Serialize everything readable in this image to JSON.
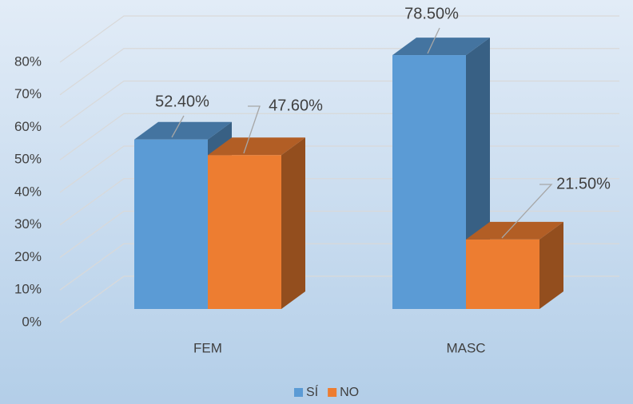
{
  "chart_data": {
    "type": "bar3d",
    "categories": [
      "FEM",
      "MASC"
    ],
    "series": [
      {
        "name": "SÍ",
        "color": "#5b9bd5",
        "values": [
          52.4,
          78.5
        ],
        "value_labels": [
          "52.40%",
          "78.50%"
        ]
      },
      {
        "name": "NO",
        "color": "#ed7d31",
        "values": [
          47.6,
          21.5
        ],
        "value_labels": [
          "47.60%",
          "21.50%"
        ]
      }
    ],
    "ylim": [
      0,
      80
    ],
    "yticks": [
      {
        "value": 0,
        "label": "0%"
      },
      {
        "value": 10,
        "label": "10%"
      },
      {
        "value": 20,
        "label": "20%"
      },
      {
        "value": 30,
        "label": "30%"
      },
      {
        "value": 40,
        "label": "40%"
      },
      {
        "value": 50,
        "label": "50%"
      },
      {
        "value": 60,
        "label": "60%"
      },
      {
        "value": 70,
        "label": "70%"
      },
      {
        "value": 80,
        "label": "80%"
      }
    ],
    "grid": true,
    "legend": "bottom"
  }
}
